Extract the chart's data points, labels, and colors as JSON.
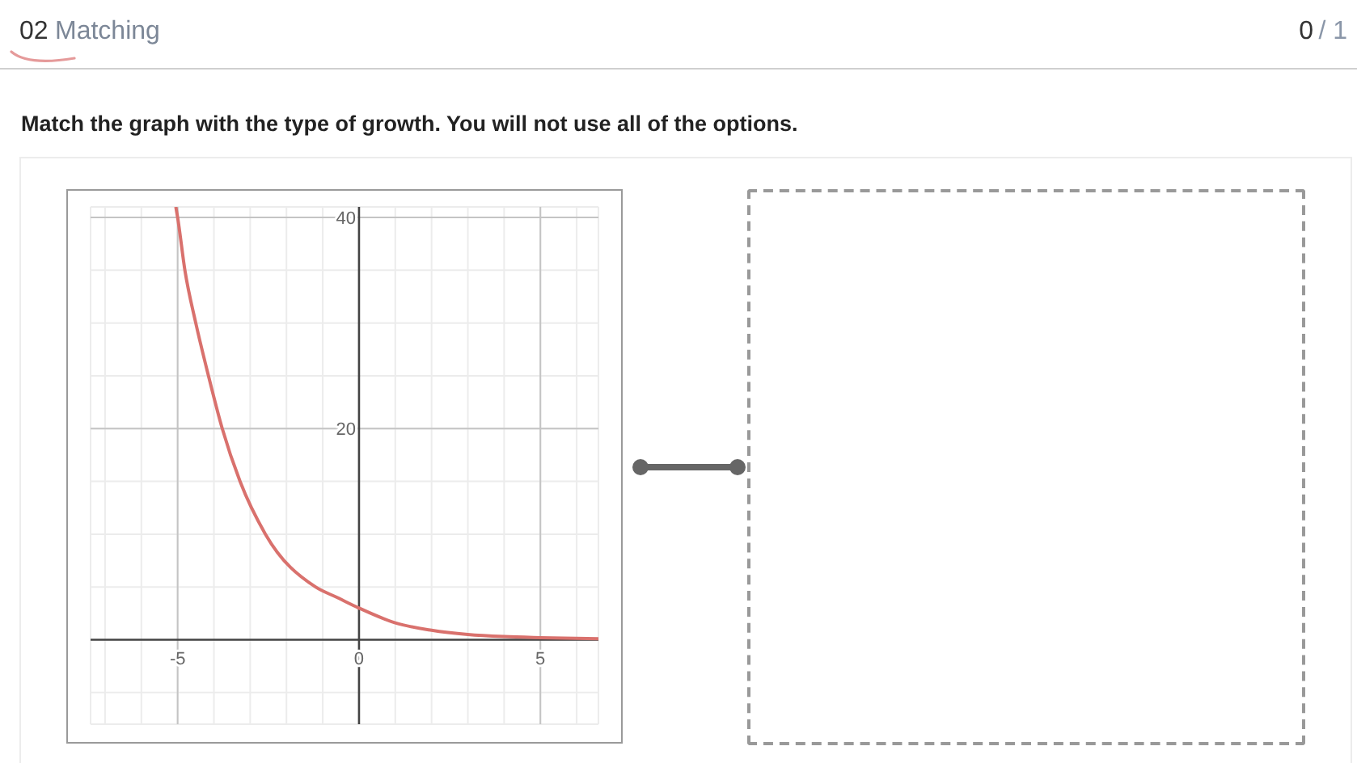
{
  "chart_data": {
    "type": "line",
    "title": "Match the graph with the type of growth. You will not use all of the options.",
    "annotations": [
      "02",
      "Matching",
      "0",
      "/ 1"
    ],
    "x": [
      -5.05,
      -5,
      -4.8,
      -4.5,
      -4.15,
      -3.77,
      -3.28,
      -2.58,
      -1.2,
      -0.6,
      0,
      1,
      2,
      3,
      4,
      5,
      6.6
    ],
    "series": [
      {
        "color": "#d9716d",
        "values": [
          41,
          40,
          35,
          30,
          25,
          20,
          15,
          10,
          5,
          4,
          3,
          1.6,
          0.9,
          0.5,
          0.3,
          0.2,
          0.1
        ]
      }
    ],
    "xlim": [
      -7.4,
      6.6
    ],
    "ylim": [
      -8,
      41
    ],
    "xticks": [
      {
        "value": -7,
        "label": null
      },
      {
        "value": -6,
        "label": null
      },
      -5,
      {
        "value": -4,
        "label": null
      },
      {
        "value": -3,
        "label": null
      },
      {
        "value": -2,
        "label": null
      },
      {
        "value": -1,
        "label": null
      },
      0,
      {
        "value": 1,
        "label": null
      },
      {
        "value": 2,
        "label": null
      },
      {
        "value": 3,
        "label": null
      },
      {
        "value": 4,
        "label": null
      },
      5,
      {
        "value": 6,
        "label": null
      }
    ],
    "yticks": [
      {
        "value": -5,
        "label": null
      },
      {
        "value": 0,
        "label": null
      },
      {
        "value": 5,
        "label": null
      },
      {
        "value": 10,
        "label": null
      },
      {
        "value": 15,
        "label": null
      },
      20,
      {
        "value": 25,
        "label": null
      },
      {
        "value": 30,
        "label": null
      },
      {
        "value": 35,
        "label": null
      },
      40
    ],
    "grid": true,
    "marker": "none",
    "line_style": "solid"
  }
}
